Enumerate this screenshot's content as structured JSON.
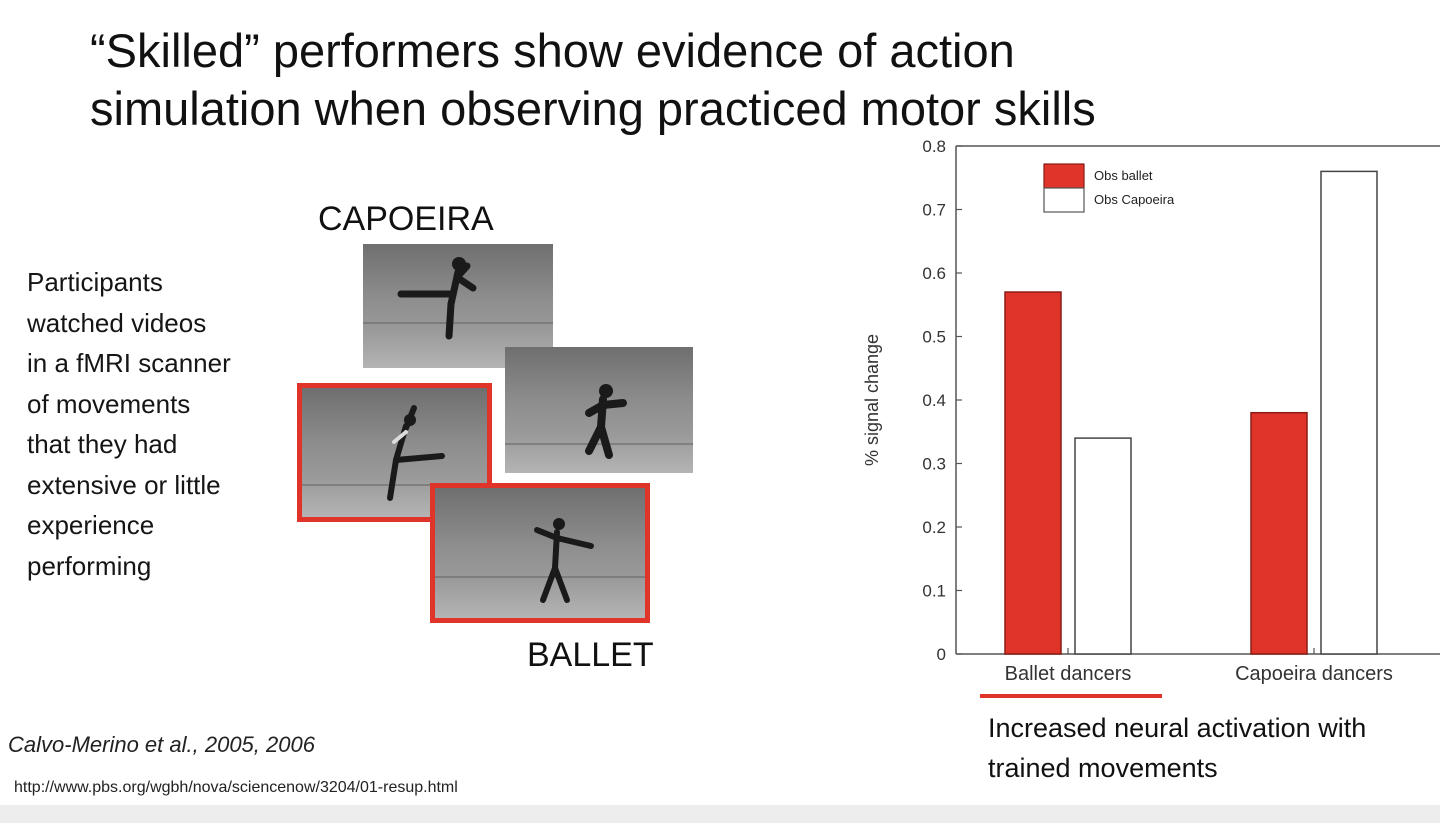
{
  "slide": {
    "title_lines": [
      "“Skilled” performers show evidence of action",
      "simulation when observing practiced motor skills"
    ],
    "description_lines": [
      "Participants",
      "watched videos",
      "in a fMRI scanner",
      "of movements",
      "that they had",
      "extensive or little",
      "experience",
      "performing"
    ],
    "label_capoeira": "CAPOEIRA",
    "label_ballet": "BALLET",
    "citation": "Calvo-Merino et al., 2005, 2006",
    "url": "http://www.pbs.org/wgbh/nova/sciencenow/3204/01-resup.html",
    "caption_lines": [
      "Increased neural activation with",
      "trained movements"
    ]
  },
  "colors": {
    "accent_red": "#e0332a",
    "bar_white": "#ffffff"
  },
  "chart_data": {
    "type": "bar",
    "categories": [
      "Ballet dancers",
      "Capoeira dancers"
    ],
    "series": [
      {
        "name": "Obs ballet",
        "values": [
          0.57,
          0.38
        ],
        "color": "#e0332a"
      },
      {
        "name": "Obs Capoeira",
        "values": [
          0.34,
          0.76
        ],
        "color": "#ffffff"
      }
    ],
    "ylabel": "% signal change",
    "xlabel": "",
    "ylim": [
      0,
      0.8
    ],
    "yticks": [
      "0",
      "0.1",
      "0.2",
      "0.3",
      "0.4",
      "0.5",
      "0.6",
      "0.7",
      "0.8"
    ],
    "legend_position": "top-left",
    "grid": false
  }
}
